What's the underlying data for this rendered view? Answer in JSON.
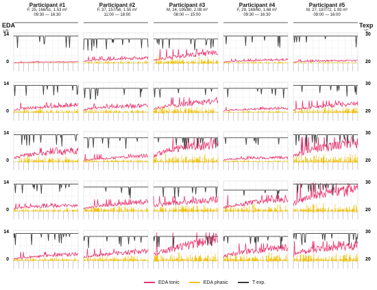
{
  "colors": {
    "tonic": "#e8336d",
    "phasic": "#f0c419",
    "temp": "#3a3a3a",
    "grid": "#e6e6e6"
  },
  "axes": {
    "left_label": "EDA",
    "left_unit": "µS",
    "right_label": "Texp",
    "right_unit": "°C",
    "left_ticks": [
      "14",
      "0"
    ],
    "right_ticks": [
      "30",
      "20"
    ]
  },
  "participants": [
    {
      "name": "Participant #1",
      "info": "F, 25, 166/51, 1.53 m²",
      "time": "09:30 — 16:30"
    },
    {
      "name": "Participant #2",
      "info": "F, 37, 157/56, 1.55 m²",
      "time": "11:00 — 18:00"
    },
    {
      "name": "Participant #3",
      "info": "M, 24, 195/80, 2.08 m²",
      "time": "08:00 — 15:00"
    },
    {
      "name": "Participant #4",
      "info": "F, 29, 169/60, 1.68 m²",
      "time": "09:30 — 16:30"
    },
    {
      "name": "Participant #5",
      "info": "M, 27, 187/72, 1.93 m²",
      "time": "09:00 — 16:00"
    }
  ],
  "legend": [
    {
      "label": "EDA tonic",
      "color": "#e8336d"
    },
    {
      "label": "EDA phasic",
      "color": "#f0c419"
    },
    {
      "label": "T exp.",
      "color": "#3a3a3a"
    }
  ],
  "chart_data": {
    "type": "line",
    "layout": "small-multiples",
    "rows": 5,
    "columns": 5,
    "series_names": [
      "EDA tonic",
      "EDA phasic",
      "T exp."
    ],
    "y_left": {
      "label": "EDA",
      "unit": "µS",
      "range": [
        0,
        14
      ]
    },
    "y_right": {
      "label": "Texp",
      "unit": "°C",
      "range": [
        20,
        30
      ]
    },
    "panels": [
      [
        {
          "tonic_peak": 0.8,
          "temp_level": 29
        },
        {
          "tonic_peak": 3.0,
          "temp_level": 28
        },
        {
          "tonic_peak": 6.5,
          "temp_level": 28
        },
        {
          "tonic_peak": 2.0,
          "temp_level": 29
        },
        {
          "tonic_peak": 1.5,
          "temp_level": 29
        }
      ],
      [
        {
          "tonic_peak": 4.5,
          "temp_level": 29
        },
        {
          "tonic_peak": 4.0,
          "temp_level": 28
        },
        {
          "tonic_peak": 7.0,
          "temp_level": 28
        },
        {
          "tonic_peak": 2.5,
          "temp_level": 28
        },
        {
          "tonic_peak": 5.5,
          "temp_level": 29
        }
      ],
      [
        {
          "tonic_peak": 6.5,
          "temp_level": 29
        },
        {
          "tonic_peak": 3.5,
          "temp_level": 28
        },
        {
          "tonic_peak": 11.0,
          "temp_level": 28
        },
        {
          "tonic_peak": 2.5,
          "temp_level": 28
        },
        {
          "tonic_peak": 11.5,
          "temp_level": 29
        }
      ],
      [
        {
          "tonic_peak": 3.5,
          "temp_level": 29
        },
        {
          "tonic_peak": 5.5,
          "temp_level": 28
        },
        {
          "tonic_peak": 7.0,
          "temp_level": 28
        },
        {
          "tonic_peak": 7.5,
          "temp_level": 27
        },
        {
          "tonic_peak": 13.0,
          "temp_level": 29
        }
      ],
      [
        {
          "tonic_peak": 4.0,
          "temp_level": 29
        },
        {
          "tonic_peak": 5.5,
          "temp_level": 28
        },
        {
          "tonic_peak": 13.0,
          "temp_level": 28
        },
        {
          "tonic_peak": 8.0,
          "temp_level": 28
        },
        {
          "tonic_peak": 9.0,
          "temp_level": 29
        }
      ]
    ]
  }
}
